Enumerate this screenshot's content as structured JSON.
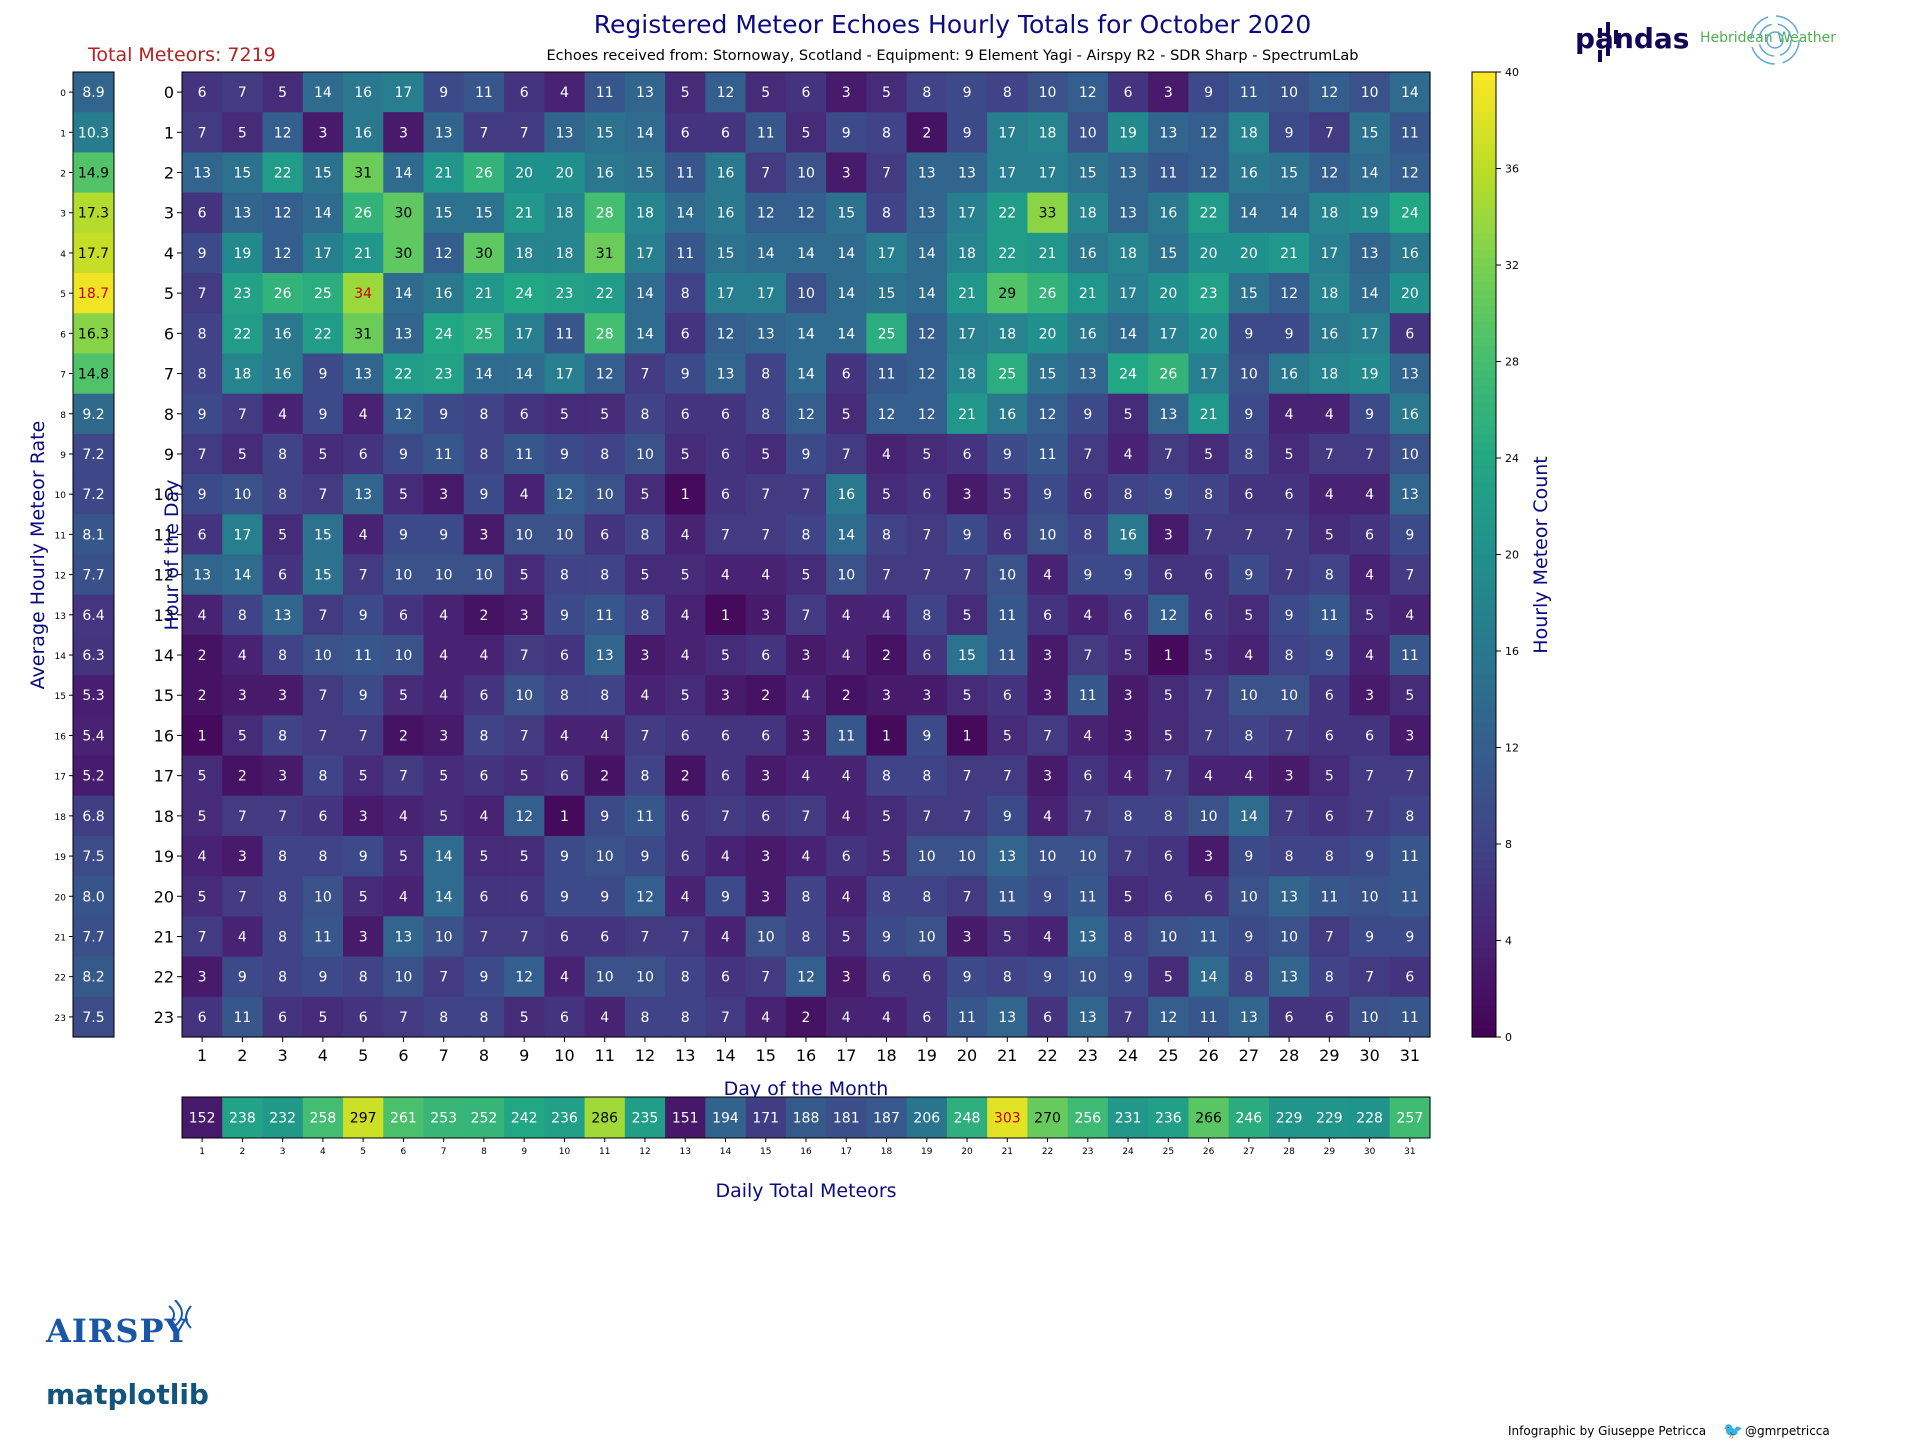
{
  "header": {
    "title": "Registered Meteor Echoes Hourly Totals for October 2020",
    "subtitle": "Echoes received from: Stornoway, Scotland - Equipment: 9 Element Yagi - Airspy R2 - SDR Sharp - SpectrumLab",
    "total_meteors": "Total Meteors: 7219"
  },
  "brands": {
    "pandas": "pandas",
    "hebridean": "Hebridean Weather",
    "airspy": "AIRSPY",
    "matplotlib": "matplotlib"
  },
  "footer": {
    "credit": "Infographic by Giuseppe Petricca",
    "twitter": "@gmrpetricca",
    "twitter_icon": "twitter-bird-icon"
  },
  "chart_data": {
    "type": "heatmap",
    "xlabel": "Day of the Month",
    "ylabel": "Hour of the Day",
    "colorbar_label": "Hourly Meteor Count",
    "avg_label": "Average Hourly Meteor Rate",
    "daily_label": "Daily Total Meteors",
    "colormap": "viridis",
    "vmin": 0,
    "vmax": 40,
    "colorbar_ticks": [
      0,
      4,
      8,
      12,
      16,
      20,
      24,
      28,
      32,
      36,
      40
    ],
    "days": [
      1,
      2,
      3,
      4,
      5,
      6,
      7,
      8,
      9,
      10,
      11,
      12,
      13,
      14,
      15,
      16,
      17,
      18,
      19,
      20,
      21,
      22,
      23,
      24,
      25,
      26,
      27,
      28,
      29,
      30,
      31
    ],
    "hours": [
      0,
      1,
      2,
      3,
      4,
      5,
      6,
      7,
      8,
      9,
      10,
      11,
      12,
      13,
      14,
      15,
      16,
      17,
      18,
      19,
      20,
      21,
      22,
      23
    ],
    "highlight_color": "#cc0000",
    "values": [
      [
        6,
        7,
        5,
        14,
        16,
        17,
        9,
        11,
        6,
        4,
        11,
        13,
        5,
        12,
        5,
        6,
        3,
        5,
        8,
        9,
        8,
        10,
        12,
        6,
        3,
        9,
        11,
        10,
        12,
        10,
        14
      ],
      [
        7,
        5,
        12,
        3,
        16,
        3,
        13,
        7,
        7,
        13,
        15,
        14,
        6,
        6,
        11,
        5,
        9,
        8,
        2,
        9,
        17,
        18,
        10,
        19,
        13,
        12,
        18,
        9,
        7,
        15,
        11
      ],
      [
        13,
        15,
        22,
        15,
        31,
        14,
        21,
        26,
        20,
        20,
        16,
        15,
        11,
        16,
        7,
        10,
        3,
        7,
        13,
        13,
        17,
        17,
        15,
        13,
        11,
        12,
        16,
        15,
        12,
        14,
        12
      ],
      [
        6,
        13,
        12,
        14,
        26,
        30,
        15,
        15,
        21,
        18,
        28,
        18,
        14,
        16,
        12,
        12,
        15,
        8,
        13,
        17,
        22,
        33,
        18,
        13,
        16,
        22,
        14,
        14,
        18,
        19,
        24
      ],
      [
        9,
        19,
        12,
        17,
        21,
        30,
        12,
        30,
        18,
        18,
        31,
        17,
        11,
        15,
        14,
        14,
        14,
        17,
        14,
        18,
        22,
        21,
        16,
        18,
        15,
        20,
        20,
        21,
        17,
        13,
        16
      ],
      [
        7,
        23,
        26,
        25,
        34,
        14,
        16,
        21,
        24,
        23,
        22,
        14,
        8,
        17,
        17,
        10,
        14,
        15,
        14,
        21,
        29,
        26,
        21,
        17,
        20,
        23,
        15,
        12,
        18,
        14,
        20
      ],
      [
        8,
        22,
        16,
        22,
        31,
        13,
        24,
        25,
        17,
        11,
        28,
        14,
        6,
        12,
        13,
        14,
        14,
        25,
        12,
        17,
        18,
        20,
        16,
        14,
        17,
        20,
        9,
        9,
        16,
        17,
        6
      ],
      [
        8,
        18,
        16,
        9,
        13,
        22,
        23,
        14,
        14,
        17,
        12,
        7,
        9,
        13,
        8,
        14,
        6,
        11,
        12,
        18,
        25,
        15,
        13,
        24,
        26,
        17,
        10,
        16,
        18,
        19,
        13
      ],
      [
        9,
        7,
        4,
        9,
        4,
        12,
        9,
        8,
        6,
        5,
        5,
        8,
        6,
        6,
        8,
        12,
        5,
        12,
        12,
        21,
        16,
        12,
        9,
        5,
        13,
        21,
        9,
        4,
        4,
        9,
        16
      ],
      [
        7,
        5,
        8,
        5,
        6,
        9,
        11,
        8,
        11,
        9,
        8,
        10,
        5,
        6,
        5,
        9,
        7,
        4,
        5,
        6,
        9,
        11,
        7,
        4,
        7,
        5,
        8,
        5,
        7,
        7,
        10
      ],
      [
        9,
        10,
        8,
        7,
        13,
        5,
        3,
        9,
        4,
        12,
        10,
        5,
        1,
        6,
        7,
        7,
        16,
        5,
        6,
        3,
        5,
        9,
        6,
        8,
        9,
        8,
        6,
        6,
        4,
        4,
        13
      ],
      [
        6,
        17,
        5,
        15,
        4,
        9,
        9,
        3,
        10,
        10,
        6,
        8,
        4,
        7,
        7,
        8,
        14,
        8,
        7,
        9,
        6,
        10,
        8,
        16,
        3,
        7,
        7,
        7,
        5,
        6,
        9
      ],
      [
        13,
        14,
        6,
        15,
        7,
        10,
        10,
        10,
        5,
        8,
        8,
        5,
        5,
        4,
        4,
        5,
        10,
        7,
        7,
        7,
        10,
        4,
        9,
        9,
        6,
        6,
        9,
        7,
        8,
        4,
        7
      ],
      [
        4,
        8,
        13,
        7,
        9,
        6,
        4,
        2,
        3,
        9,
        11,
        8,
        4,
        1,
        3,
        7,
        4,
        4,
        8,
        5,
        11,
        6,
        4,
        6,
        12,
        6,
        5,
        9,
        11,
        5,
        4
      ],
      [
        2,
        4,
        8,
        10,
        11,
        10,
        4,
        4,
        7,
        6,
        13,
        3,
        4,
        5,
        6,
        3,
        4,
        2,
        6,
        15,
        11,
        3,
        7,
        5,
        1,
        5,
        4,
        8,
        9,
        4,
        11
      ],
      [
        2,
        3,
        3,
        7,
        9,
        5,
        4,
        6,
        10,
        8,
        8,
        4,
        5,
        3,
        2,
        4,
        2,
        3,
        3,
        5,
        6,
        3,
        11,
        3,
        5,
        7,
        10,
        10,
        6,
        3,
        5
      ],
      [
        1,
        5,
        8,
        7,
        7,
        2,
        3,
        8,
        7,
        4,
        4,
        7,
        6,
        6,
        6,
        3,
        11,
        1,
        9,
        1,
        5,
        7,
        4,
        3,
        5,
        7,
        8,
        7,
        6,
        6,
        3
      ],
      [
        5,
        2,
        3,
        8,
        5,
        7,
        5,
        6,
        5,
        6,
        2,
        8,
        2,
        6,
        3,
        4,
        4,
        8,
        8,
        7,
        7,
        3,
        6,
        4,
        7,
        4,
        4,
        3,
        5,
        7,
        7
      ],
      [
        5,
        7,
        7,
        6,
        3,
        4,
        5,
        4,
        12,
        1,
        9,
        11,
        6,
        7,
        6,
        7,
        4,
        5,
        7,
        7,
        9,
        4,
        7,
        8,
        8,
        10,
        14,
        7,
        6,
        7,
        8
      ],
      [
        4,
        3,
        8,
        8,
        9,
        5,
        14,
        5,
        5,
        9,
        10,
        9,
        6,
        4,
        3,
        4,
        6,
        5,
        10,
        10,
        13,
        10,
        10,
        7,
        6,
        3,
        9,
        8,
        8,
        9,
        11
      ],
      [
        5,
        7,
        8,
        10,
        5,
        4,
        14,
        6,
        6,
        9,
        9,
        12,
        4,
        9,
        3,
        8,
        4,
        8,
        8,
        7,
        11,
        9,
        11,
        5,
        6,
        6,
        10,
        13,
        11,
        10,
        11
      ],
      [
        7,
        4,
        8,
        11,
        3,
        13,
        10,
        7,
        7,
        6,
        6,
        7,
        7,
        4,
        10,
        8,
        5,
        9,
        10,
        3,
        5,
        4,
        13,
        8,
        10,
        11,
        9,
        10,
        7,
        9,
        9
      ],
      [
        3,
        9,
        8,
        9,
        8,
        10,
        7,
        9,
        12,
        4,
        10,
        10,
        8,
        6,
        7,
        12,
        3,
        6,
        6,
        9,
        8,
        9,
        10,
        9,
        5,
        14,
        8,
        13,
        8,
        7,
        6
      ],
      [
        6,
        11,
        6,
        5,
        6,
        7,
        8,
        8,
        5,
        6,
        4,
        8,
        8,
        7,
        4,
        2,
        4,
        4,
        6,
        11,
        13,
        6,
        13,
        7,
        12,
        11,
        13,
        6,
        6,
        10,
        11
      ]
    ],
    "hourly_average": [
      "8.9",
      "10.3",
      "14.9",
      "17.3",
      "17.7",
      "18.7",
      "16.3",
      "14.8",
      "9.2",
      "7.2",
      "7.2",
      "8.1",
      "7.7",
      "6.4",
      "6.3",
      "5.3",
      "5.4",
      "5.2",
      "6.8",
      "7.5",
      "8.0",
      "7.7",
      "8.2",
      "7.5"
    ],
    "hourly_average_vmin": 4,
    "hourly_average_vmax": 19,
    "hourly_average_max_hour": 5,
    "daily_totals": [
      152,
      238,
      232,
      258,
      297,
      261,
      253,
      252,
      242,
      236,
      286,
      235,
      151,
      194,
      171,
      188,
      181,
      187,
      206,
      248,
      303,
      270,
      256,
      231,
      236,
      266,
      246,
      229,
      229,
      228,
      257
    ],
    "daily_totals_vmin": 140,
    "daily_totals_vmax": 310,
    "daily_totals_max_day": 21,
    "max_cell": {
      "hour": 5,
      "day": 5
    },
    "grid": false
  }
}
